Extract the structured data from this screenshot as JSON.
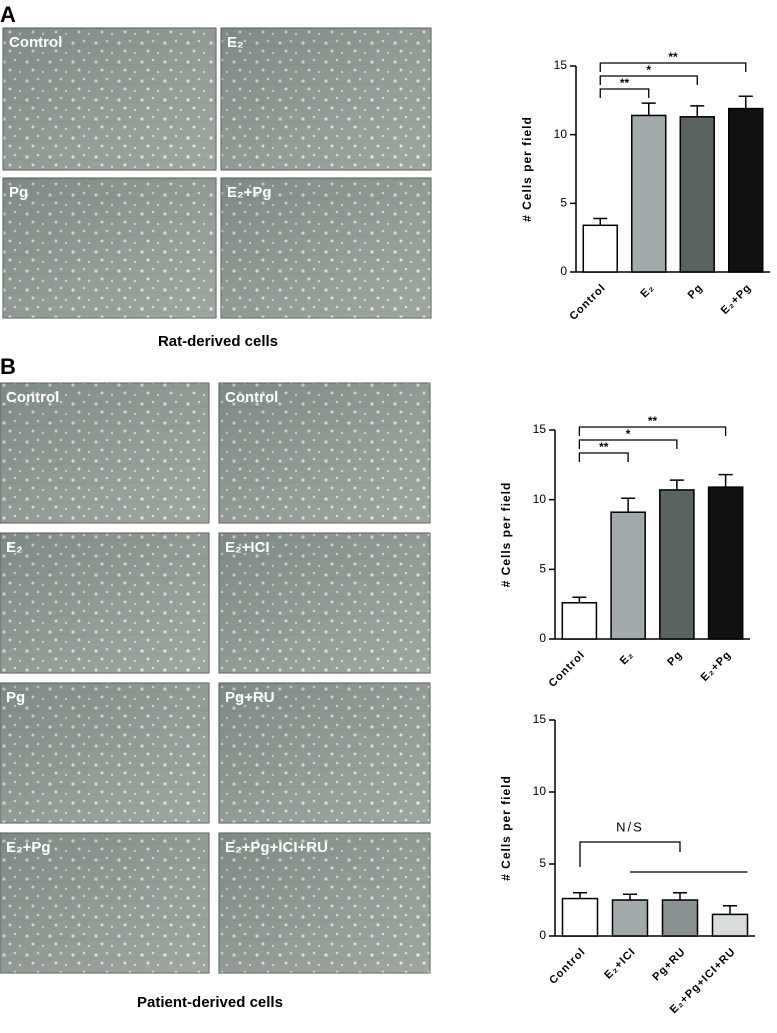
{
  "panels": [
    {
      "label": "A",
      "images": [
        "Control",
        "E₂",
        "Pg",
        "E₂+Pg"
      ],
      "caption": "Rat-derived cells"
    },
    {
      "label": "B",
      "images": [
        "Control",
        "Control",
        "E₂",
        "E₂+ICI",
        "Pg",
        "Pg+RU",
        "E₂+Pg",
        "E₂+Pg+ICI+RU"
      ],
      "caption": "Patient-derived cells"
    }
  ],
  "chart_data": [
    {
      "type": "bar",
      "y_label": "# Cells per field",
      "categories": [
        "Control",
        "E₂",
        "Pg",
        "E₂+Pg"
      ],
      "values": [
        3.4,
        11.4,
        11.3,
        11.9
      ],
      "errors": [
        0.5,
        0.9,
        0.8,
        0.9
      ],
      "colors": [
        "#ffffff",
        "#a2aaac",
        "#5b6262",
        "#111111"
      ],
      "ylim": [
        0,
        15
      ],
      "yticks": [
        0,
        5,
        10,
        15
      ],
      "annotations": [
        "**",
        "*",
        "**"
      ]
    },
    {
      "type": "bar",
      "y_label": "# Cells per field",
      "categories": [
        "Control",
        "E₂",
        "Pg",
        "E₂+Pg"
      ],
      "values": [
        2.6,
        9.1,
        10.7,
        10.9
      ],
      "errors": [
        0.4,
        1.0,
        0.7,
        0.9
      ],
      "colors": [
        "#ffffff",
        "#a2aaac",
        "#5b6262",
        "#111111"
      ],
      "ylim": [
        0,
        15
      ],
      "yticks": [
        0,
        5,
        10,
        15
      ],
      "annotations": [
        "**",
        "*",
        "**"
      ]
    },
    {
      "type": "bar",
      "y_label": "# Cells per field",
      "categories": [
        "Control",
        "E₂+ICI",
        "Pg+RU",
        "E₂+Pg+ICI+RU"
      ],
      "values": [
        2.6,
        2.5,
        2.5,
        1.5
      ],
      "errors": [
        0.4,
        0.4,
        0.5,
        0.6
      ],
      "colors": [
        "#ffffff",
        "#a2aaac",
        "#8a9192",
        "#d8dcdb"
      ],
      "ylim": [
        0,
        15
      ],
      "yticks": [
        0,
        5,
        10,
        15
      ],
      "annotations": [
        "N/S"
      ]
    }
  ]
}
